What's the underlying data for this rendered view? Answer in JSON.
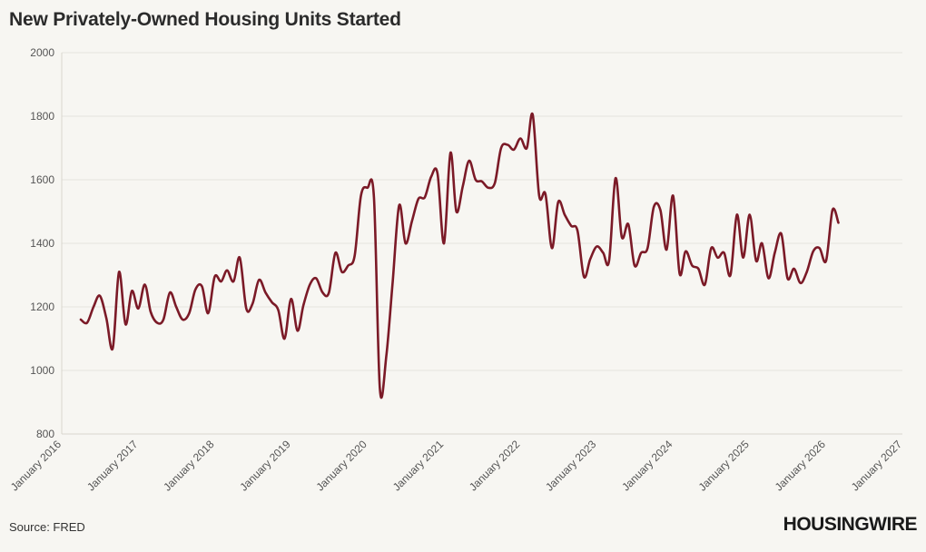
{
  "title": "New Privately-Owned Housing Units Started",
  "source": "Source: FRED",
  "logo": "HOUSINGWIRE",
  "colors": {
    "line": "#7b1a27",
    "background": "#f7f6f2",
    "grid": "#e6e4de"
  },
  "chart_data": {
    "type": "line",
    "title": "New Privately-Owned Housing Units Started",
    "xlabel": "",
    "ylabel": "",
    "xlim": [
      "2016-01-01",
      "2027-01-01"
    ],
    "ylim": [
      800,
      2000
    ],
    "grid": true,
    "legend": "none",
    "y_ticks": [
      800,
      1000,
      1200,
      1400,
      1600,
      1800,
      2000
    ],
    "x_ticks": [
      "January 2016",
      "January 2017",
      "January 2018",
      "January 2019",
      "January 2020",
      "January 2021",
      "January 2022",
      "January 2023",
      "January 2024",
      "January 2025",
      "January 2026",
      "January 2027"
    ],
    "series": [
      {
        "x": [
          "2016-04",
          "2016-05",
          "2016-06",
          "2016-07",
          "2016-08",
          "2016-09",
          "2016-10",
          "2016-11",
          "2016-12",
          "2017-01",
          "2017-02",
          "2017-03",
          "2017-04",
          "2017-05",
          "2017-06",
          "2017-07",
          "2017-08",
          "2017-09",
          "2017-10",
          "2017-11",
          "2017-12",
          "2018-01",
          "2018-02",
          "2018-03",
          "2018-04",
          "2018-05",
          "2018-06",
          "2018-07",
          "2018-08",
          "2018-09",
          "2018-10",
          "2018-11",
          "2018-12",
          "2019-01",
          "2019-02",
          "2019-03",
          "2019-04",
          "2019-05",
          "2019-06",
          "2019-07",
          "2019-08",
          "2019-09",
          "2019-10",
          "2019-11",
          "2019-12",
          "2020-01",
          "2020-02",
          "2020-03",
          "2020-04",
          "2020-05",
          "2020-06",
          "2020-07",
          "2020-08",
          "2020-09",
          "2020-10",
          "2020-11",
          "2020-12",
          "2021-01",
          "2021-02",
          "2021-03",
          "2021-04",
          "2021-05",
          "2021-06",
          "2021-07",
          "2021-08",
          "2021-09",
          "2021-10",
          "2021-11",
          "2021-12",
          "2022-01",
          "2022-02",
          "2022-03",
          "2022-04",
          "2022-05",
          "2022-06",
          "2022-07",
          "2022-08",
          "2022-09",
          "2022-10",
          "2022-11",
          "2022-12",
          "2023-01",
          "2023-02",
          "2023-03",
          "2023-04",
          "2023-05",
          "2023-06",
          "2023-07",
          "2023-08",
          "2023-09",
          "2023-10",
          "2023-11",
          "2023-12",
          "2024-01",
          "2024-02",
          "2024-03",
          "2024-04",
          "2024-05",
          "2024-06",
          "2024-07",
          "2024-08",
          "2024-09",
          "2024-10",
          "2024-11",
          "2024-12",
          "2025-01",
          "2025-02",
          "2025-03",
          "2025-04",
          "2025-05",
          "2025-06",
          "2025-07",
          "2025-08",
          "2025-09",
          "2025-10",
          "2025-11",
          "2025-12",
          "2026-01",
          "2026-02",
          "2026-03"
        ],
        "y": [
          1160,
          1150,
          1200,
          1235,
          1165,
          1070,
          1310,
          1145,
          1250,
          1195,
          1270,
          1185,
          1150,
          1160,
          1245,
          1200,
          1160,
          1180,
          1255,
          1265,
          1180,
          1295,
          1280,
          1315,
          1280,
          1355,
          1195,
          1210,
          1285,
          1245,
          1215,
          1190,
          1100,
          1225,
          1125,
          1205,
          1270,
          1290,
          1245,
          1245,
          1370,
          1310,
          1330,
          1360,
          1550,
          1575,
          1545,
          940,
          1050,
          1280,
          1520,
          1400,
          1470,
          1540,
          1545,
          1610,
          1620,
          1400,
          1685,
          1500,
          1580,
          1660,
          1600,
          1595,
          1575,
          1590,
          1700,
          1710,
          1695,
          1730,
          1700,
          1805,
          1550,
          1555,
          1385,
          1530,
          1490,
          1455,
          1440,
          1295,
          1350,
          1390,
          1370,
          1345,
          1605,
          1420,
          1460,
          1330,
          1370,
          1385,
          1515,
          1505,
          1380,
          1550,
          1305,
          1375,
          1330,
          1320,
          1270,
          1385,
          1355,
          1370,
          1300,
          1490,
          1355,
          1490,
          1345,
          1400,
          1290,
          1370,
          1430,
          1290,
          1320,
          1275,
          1310,
          1375,
          1385,
          1345,
          1505,
          1465
        ]
      }
    ]
  }
}
